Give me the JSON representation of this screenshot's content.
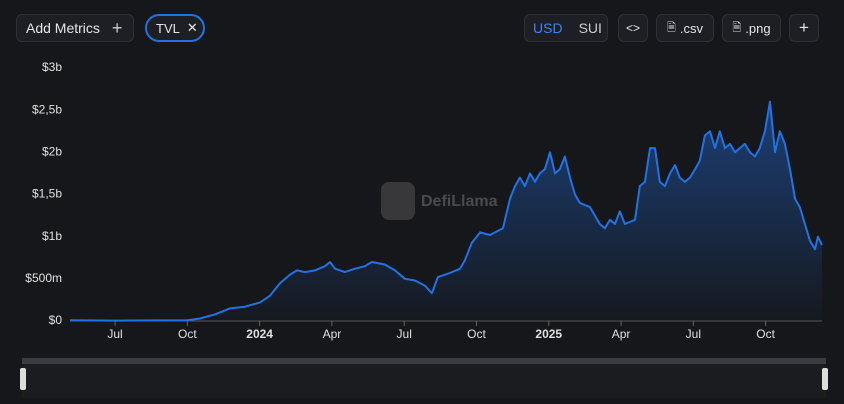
{
  "toolbar": {
    "add_metrics": "Add Metrics",
    "metric": "TVL",
    "currencies": [
      "USD",
      "SUI"
    ],
    "csv": ".csv",
    "png": ".png"
  },
  "watermark": "DefiLlama",
  "chart_data": {
    "type": "area",
    "color": "#2172e5",
    "x": [
      0.13,
      2,
      5,
      5.53,
      6.15,
      6.77,
      7.39,
      8.02,
      8.43,
      8.85,
      9.26,
      9.55,
      9.88,
      10.3,
      10.71,
      10.92,
      11.13,
      11.54,
      11.96,
      12.37,
      12.66,
      13.2,
      13.62,
      14.03,
      14.45,
      14.86,
      15.15,
      15.4,
      15.9,
      16.32,
      16.52,
      16.81,
      17.15,
      17.56,
      17.77,
      18.1,
      18.39,
      18.6,
      18.8,
      19.01,
      19.22,
      19.43,
      19.63,
      19.84,
      20.05,
      20.26,
      20.46,
      20.67,
      20.88,
      21.09,
      21.29,
      21.71,
      22.12,
      22.33,
      22.54,
      22.75,
      22.95,
      23.16,
      23.58,
      23.78,
      23.99,
      24.2,
      24.41,
      24.61,
      24.82,
      25.03,
      25.24,
      25.44,
      25.65,
      25.86,
      26.07,
      26.27,
      26.48,
      26.69,
      26.9,
      27.1,
      27.31,
      27.52,
      27.73,
      27.93,
      28.14,
      28.35,
      28.56,
      28.76,
      28.97,
      29.18,
      29.39,
      29.59,
      29.8,
      30.01,
      30.22,
      30.42,
      30.63,
      30.84,
      31.05,
      31.17,
      31.34
    ],
    "series": [
      {
        "name": "TVL",
        "color": "#2172e5",
        "values": [
          0.01,
          0.005,
          0.01,
          0.03,
          0.08,
          0.15,
          0.17,
          0.22,
          0.3,
          0.45,
          0.55,
          0.6,
          0.58,
          0.6,
          0.65,
          0.7,
          0.62,
          0.58,
          0.62,
          0.65,
          0.7,
          0.67,
          0.6,
          0.5,
          0.48,
          0.42,
          0.33,
          0.52,
          0.57,
          0.62,
          0.72,
          0.93,
          1.05,
          1.02,
          1.05,
          1.1,
          1.45,
          1.6,
          1.7,
          1.6,
          1.75,
          1.65,
          1.75,
          1.8,
          2.0,
          1.75,
          1.8,
          1.95,
          1.7,
          1.5,
          1.4,
          1.35,
          1.15,
          1.1,
          1.2,
          1.15,
          1.3,
          1.15,
          1.2,
          1.6,
          1.65,
          2.05,
          2.05,
          1.65,
          1.6,
          1.75,
          1.85,
          1.7,
          1.65,
          1.7,
          1.8,
          1.9,
          2.2,
          2.25,
          2.05,
          2.25,
          2.05,
          2.1,
          2.0,
          2.05,
          2.1,
          2.0,
          1.95,
          2.05,
          2.25,
          2.6,
          2.0,
          2.25,
          2.1,
          1.8,
          1.45,
          1.35,
          1.15,
          0.95,
          0.85,
          1.0,
          0.9
        ]
      }
    ],
    "xlim": [
      0.13,
      31.34
    ],
    "xticks": [
      {
        "value": 2,
        "label": "Jul"
      },
      {
        "value": 5,
        "label": "Oct"
      },
      {
        "value": 8,
        "label": "2024"
      },
      {
        "value": 11,
        "label": "Apr"
      },
      {
        "value": 14,
        "label": "Jul"
      },
      {
        "value": 17,
        "label": "Oct"
      },
      {
        "value": 20,
        "label": "2025"
      },
      {
        "value": 23,
        "label": "Apr"
      },
      {
        "value": 26,
        "label": "Jul"
      },
      {
        "value": 29,
        "label": "Oct"
      }
    ],
    "ylim": [
      0,
      3
    ],
    "yticks": [
      {
        "value": 0,
        "label": "$0"
      },
      {
        "value": 0.5,
        "label": "$500m"
      },
      {
        "value": 1,
        "label": "$1b"
      },
      {
        "value": 1.5,
        "label": "$1,5b"
      },
      {
        "value": 2,
        "label": "$2b"
      },
      {
        "value": 2.5,
        "label": "$2,5b"
      },
      {
        "value": 3,
        "label": "$3b"
      }
    ],
    "grid": false
  }
}
